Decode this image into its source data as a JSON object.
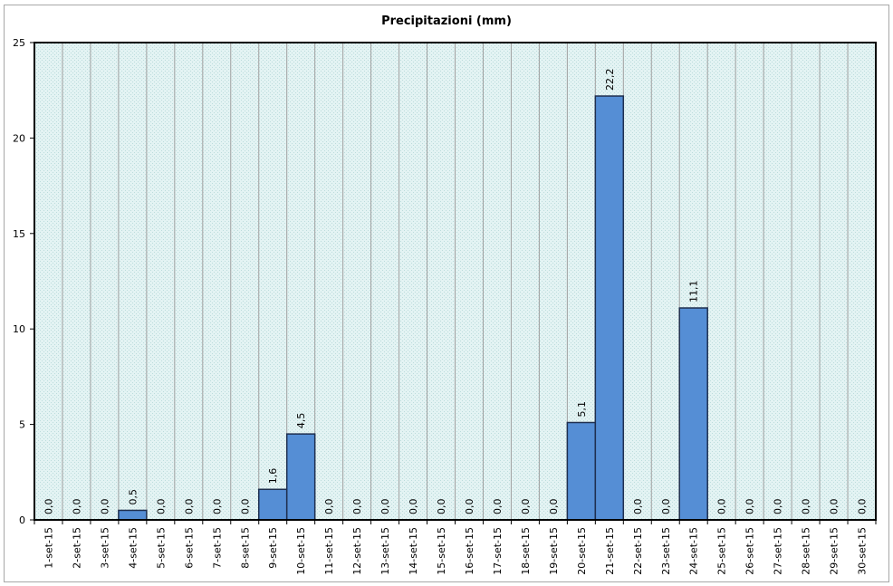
{
  "chart_data": {
    "type": "bar",
    "title": "Precipitazioni (mm)",
    "categories": [
      "1-set-15",
      "2-set-15",
      "3-set-15",
      "4-set-15",
      "5-set-15",
      "6-set-15",
      "7-set-15",
      "8-set-15",
      "9-set-15",
      "10-set-15",
      "11-set-15",
      "12-set-15",
      "13-set-15",
      "14-set-15",
      "15-set-15",
      "16-set-15",
      "17-set-15",
      "18-set-15",
      "19-set-15",
      "20-set-15",
      "21-set-15",
      "22-set-15",
      "23-set-15",
      "24-set-15",
      "25-set-15",
      "26-set-15",
      "27-set-15",
      "28-set-15",
      "29-set-15",
      "30-set-15"
    ],
    "values": [
      0,
      0,
      0,
      0.5,
      0,
      0,
      0,
      0,
      1.6,
      4.5,
      0,
      0,
      0,
      0,
      0,
      0,
      0,
      0,
      0,
      5.1,
      22.2,
      0,
      0,
      11.1,
      0,
      0,
      0,
      0,
      0,
      0
    ],
    "value_labels": [
      "0,0",
      "0,0",
      "0,0",
      "0,5",
      "0,0",
      "0,0",
      "0,0",
      "0,0",
      "1,6",
      "4,5",
      "0,0",
      "0,0",
      "0,0",
      "0,0",
      "0,0",
      "0,0",
      "0,0",
      "0,0",
      "0,0",
      "5,1",
      "22,2",
      "0,0",
      "0,0",
      "11,1",
      "0,0",
      "0,0",
      "0,0",
      "0,0",
      "0,0",
      "0,0"
    ],
    "ylim": [
      0,
      25
    ],
    "yticks": [
      0,
      5,
      10,
      15,
      20,
      25
    ],
    "grid": true,
    "colors": {
      "bar": "#558ed5",
      "bar_border": "#1f2f4f",
      "plot_bg": "#dcefef",
      "grid": "#a0a0a0"
    }
  }
}
